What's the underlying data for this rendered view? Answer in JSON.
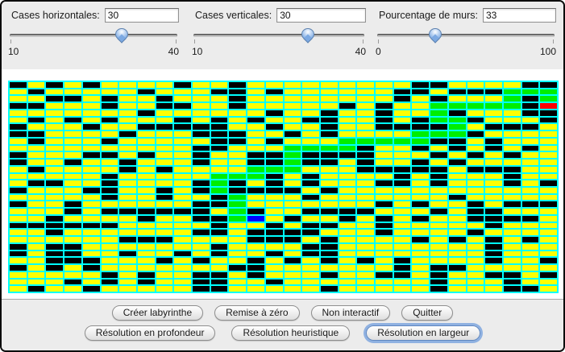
{
  "window": {
    "background": "#ffffff",
    "border_color": "#0a0a0a",
    "panel_background": "#ececec"
  },
  "controls": [
    {
      "label": "Cases horizontales:",
      "value": "30",
      "min": "10",
      "max": "40",
      "thumb_pct": 66.7
    },
    {
      "label": "Cases verticales:",
      "value": "30",
      "min": "10",
      "max": "40",
      "thumb_pct": 66.7
    },
    {
      "label": "Pourcentage de murs:",
      "value": "33",
      "min": "0",
      "max": "100",
      "thumb_pct": 33
    }
  ],
  "maze": {
    "rows": 30,
    "cols": 30,
    "grid_line_color": "#00ffff",
    "legend": {
      "Y": {
        "color": "#ffff00",
        "meaning": "open-cell"
      },
      "B": {
        "color": "#000000",
        "meaning": "wall-cell"
      },
      "G": {
        "color": "#00ee00",
        "meaning": "solution-path-cell"
      },
      "U": {
        "color": "#0000ff",
        "meaning": "start-cell"
      },
      "R": {
        "color": "#ff0000",
        "meaning": "goal-cell"
      }
    },
    "cells": [
      "BYBYBYYYYBYYBYYYYYYYYYBBYYYYBB",
      "YBYYYYYBYYYBBYBYYYYYYBBYBBBGGG",
      "YYBBYBYYBYYYBYYYYYYYYBYBYYYGBG",
      "BBYYYBYYBBYYBYYYYYBYBYYGGGGGBR",
      "YYYYYYYBYYYYYYBYYBYYBYYGBYYYBB",
      "YBYBYBYYYBYBYBYYBBYYBYBGGBYYYB",
      "BYYYBYYBBBBBYYBYYBYYBBBBGYBBBY",
      "BBYYYYBYYYBBBYYBYBYYYYGGGBYYYY",
      "YBYYYBYYYYYBBYBYYYGGGGGBBYBYYY",
      "YYYYYYYYYYBBYYYGGGGBYYBYBYBYBY",
      "BYYYBBYBYYBYYBBGBBBBYYYBYBYBYY",
      "BYYBYYBYYYBYYBBGBBYBYYBYBYYYYY",
      "YBYYYYBYBYYYYGGGYYYBBBBBYBBBYY",
      "YYYYYBYYYYYGGGBYBYYYYBYBYYYBYY",
      "YBBYYBYYYYBGBYBYBYYYBBYBYYYBYB",
      "BYYYBBYYBYBGBBBBYBYYYYYYYYYYYY",
      "YYYYYBYYBYYBGYYYBYYYYYYYBYYYYY",
      "BYYBYYYYYYBBGYYYYYYYBYBYYBYBBB",
      "YYYBYBBBBBBYGBYYBBBBYYYBYBBYYY",
      "YYBYYYYBYYBBGUYBYYBYBYBYYBBBBY",
      "BBBBBBYYYYYBYYBYBBYYBYYYYYBYYY",
      "YYBYYYYYYYBBYBBBBYYYBYYYYBYYYY",
      "YYYYYYBBBYYYYBBBYBYYYYBYBYBYBY",
      "BYBBYYYYYYYBYYYYBBYYYYYYYYBYYY",
      "BYBBYYBYYBYBYYBYBBYYYYYYYYBYYY",
      "YYBBBYYYBYBYYBYBYBYBYBYYYYBYYB",
      "BYBYBYYYYYYYBBYYYYYYYBYBBYYYYY",
      "YYYYYBYBYYBBYBYYYBYYBBYBYYBBYB",
      "YYYBYBYBYYBBYYBYYYYYYYYBYYYBYY",
      "YBYYBYYYYYBBYYYYYBYYYYYBYYYBBY"
    ]
  },
  "buttons": {
    "row1": [
      {
        "label": "Créer labyrinthe",
        "name": "create-maze-button"
      },
      {
        "label": "Remise à zéro",
        "name": "reset-button"
      },
      {
        "label": "Non interactif",
        "name": "non-interactive-button"
      },
      {
        "label": "Quitter",
        "name": "quit-button"
      }
    ],
    "row2": [
      {
        "label": "Résolution en profondeur",
        "name": "depth-first-solve-button"
      },
      {
        "label": "Résolution heuristique",
        "name": "heuristic-solve-button"
      },
      {
        "label": "Résolution en largeur",
        "name": "breadth-first-solve-button",
        "focused": true
      }
    ]
  }
}
